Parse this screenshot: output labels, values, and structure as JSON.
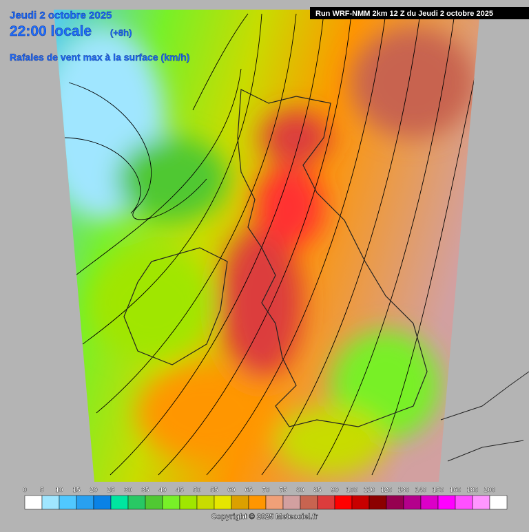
{
  "header": {
    "date": "Jeudi 2 octobre 2025",
    "time": "22:00 locale",
    "lead": "(+8h)",
    "subtitle": "Rafales de vent max à la surface (km/h)",
    "run": "Run WRF-NMM 2km 12 Z du Jeudi 2 octobre 2025"
  },
  "legend": {
    "ticks": [
      0,
      5,
      10,
      15,
      20,
      25,
      30,
      35,
      40,
      45,
      50,
      55,
      60,
      65,
      70,
      75,
      80,
      85,
      90,
      100,
      110,
      120,
      130,
      140,
      150,
      160,
      180,
      200
    ],
    "colors": [
      "#ffffff",
      "#a0e6ff",
      "#50c8ff",
      "#28a0f0",
      "#0a82e6",
      "#00e6a0",
      "#28c864",
      "#50c832",
      "#78f028",
      "#a0e600",
      "#c8dc00",
      "#e6e600",
      "#dca000",
      "#ff9600",
      "#f0a078",
      "#d2a0a0",
      "#c86450",
      "#dc3c3c",
      "#ff0000",
      "#c80000",
      "#8c0000",
      "#960050",
      "#b4008c",
      "#dc00c8",
      "#ff00ff",
      "#ff50ff",
      "#ff96ff",
      "#ffffff"
    ]
  },
  "footer": {
    "copyright": "Copyright © 2025 Meteociel.fr"
  }
}
